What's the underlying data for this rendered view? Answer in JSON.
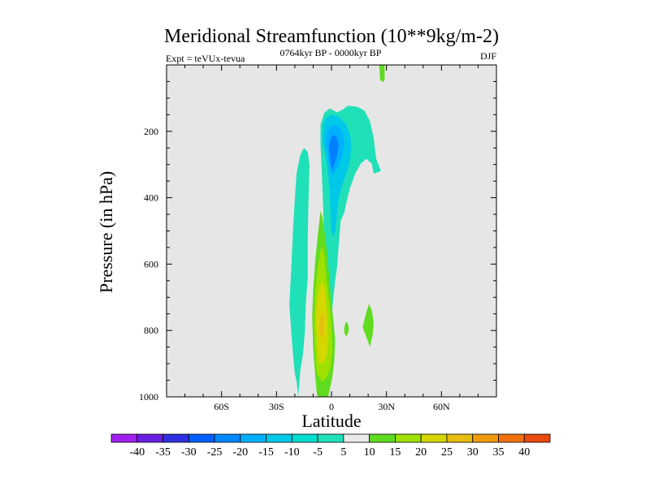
{
  "chart_data": {
    "type": "contour",
    "title": "Meridional Streamfunction (10**9kg/m-2)",
    "subtitle": "0764kyr BP - 0000kyr BP",
    "left_label": "Expt = teVUx-tevua",
    "right_label": "DJF",
    "xlabel": "Latitude",
    "ylabel": "Pressure (in hPa)",
    "xlim": [
      -90,
      90
    ],
    "ylim": [
      0,
      1000
    ],
    "y_inverted": true,
    "x_ticks": [
      {
        "value": -60,
        "label": "60S"
      },
      {
        "value": -30,
        "label": "30S"
      },
      {
        "value": 0,
        "label": "0"
      },
      {
        "value": 30,
        "label": "30N"
      },
      {
        "value": 60,
        "label": "60N"
      }
    ],
    "y_ticks": [
      {
        "value": 200,
        "label": "200"
      },
      {
        "value": 400,
        "label": "400"
      },
      {
        "value": 600,
        "label": "600"
      },
      {
        "value": 800,
        "label": "800"
      },
      {
        "value": 1000,
        "label": "1000"
      }
    ],
    "background_color": "#e6e6e6",
    "regions": [
      {
        "name": "sh-weak-negative-cell",
        "level": -5,
        "color": "#20e0b8",
        "points": [
          [
            -21,
            1045
          ],
          [
            -18,
            1003
          ],
          [
            -19,
            955
          ],
          [
            -20,
            930
          ],
          [
            -21,
            870
          ],
          [
            -22,
            800
          ],
          [
            -23,
            720
          ],
          [
            -22,
            620
          ],
          [
            -21,
            500
          ],
          [
            -20,
            400
          ],
          [
            -19,
            325
          ],
          [
            -17,
            270
          ],
          [
            -15,
            250
          ],
          [
            -13,
            262
          ],
          [
            -12,
            300
          ],
          [
            -12.5,
            400
          ],
          [
            -13,
            520
          ],
          [
            -13,
            640
          ],
          [
            -14,
            720
          ],
          [
            -14.5,
            800
          ],
          [
            -15.5,
            870
          ],
          [
            -17,
            920
          ],
          [
            -18,
            990
          ]
        ]
      },
      {
        "name": "tropical-negative-cell-outer",
        "level": -5,
        "color": "#20e0b8",
        "points": [
          [
            -6,
            180
          ],
          [
            -4,
            145
          ],
          [
            -1,
            131
          ],
          [
            3,
            143
          ],
          [
            6,
            135
          ],
          [
            9,
            123
          ],
          [
            14,
            126
          ],
          [
            18,
            138
          ],
          [
            21,
            170
          ],
          [
            23,
            220
          ],
          [
            24,
            265
          ],
          [
            24.5,
            285
          ],
          [
            26,
            305
          ],
          [
            27,
            320
          ],
          [
            23,
            327
          ],
          [
            22,
            297
          ],
          [
            19,
            283
          ],
          [
            16,
            297
          ],
          [
            13,
            327
          ],
          [
            10,
            372
          ],
          [
            8,
            418
          ],
          [
            7,
            444
          ],
          [
            5,
            470
          ],
          [
            4,
            540
          ],
          [
            3,
            610
          ],
          [
            2,
            650
          ],
          [
            1,
            700
          ],
          [
            0,
            760
          ],
          [
            -1,
            805
          ],
          [
            -2.5,
            840
          ],
          [
            -3,
            820
          ],
          [
            -3,
            760
          ],
          [
            -3,
            700
          ],
          [
            -3.5,
            600
          ],
          [
            -4,
            520
          ],
          [
            -4.5,
            440
          ],
          [
            -5,
            360
          ],
          [
            -5.5,
            300
          ],
          [
            -6,
            240
          ]
        ]
      },
      {
        "name": "tropical-negative-cell-middle",
        "level": -10,
        "color": "#00c8e8",
        "points": [
          [
            -5,
            230
          ],
          [
            -4.5,
            180
          ],
          [
            -3,
            160
          ],
          [
            0,
            150
          ],
          [
            4,
            155
          ],
          [
            8,
            180
          ],
          [
            10,
            210
          ],
          [
            11,
            240
          ],
          [
            10,
            290
          ],
          [
            8,
            330
          ],
          [
            6,
            360
          ],
          [
            4,
            400
          ],
          [
            3,
            450
          ],
          [
            2,
            500
          ],
          [
            1,
            520
          ],
          [
            0,
            500
          ],
          [
            -0.5,
            440
          ],
          [
            -1,
            380
          ],
          [
            -2,
            320
          ],
          [
            -3,
            280
          ],
          [
            -4,
            255
          ]
        ]
      },
      {
        "name": "tropical-negative-cell-inner",
        "level": -15,
        "color": "#00b0ff",
        "points": [
          [
            -3,
            230
          ],
          [
            -2.5,
            200
          ],
          [
            0,
            182
          ],
          [
            4,
            185
          ],
          [
            6,
            205
          ],
          [
            7,
            235
          ],
          [
            6,
            270
          ],
          [
            4,
            300
          ],
          [
            2,
            320
          ],
          [
            0.5,
            335
          ],
          [
            -1,
            310
          ],
          [
            -2,
            280
          ],
          [
            -2.5,
            255
          ]
        ]
      },
      {
        "name": "tropical-negative-cell-core",
        "level": -20,
        "color": "#0080ff",
        "points": [
          [
            -1.5,
            245
          ],
          [
            0,
            215
          ],
          [
            2.5,
            212
          ],
          [
            4,
            240
          ],
          [
            3,
            275
          ],
          [
            1.5,
            300
          ],
          [
            0.5,
            320
          ],
          [
            -0.5,
            300
          ],
          [
            -1,
            270
          ]
        ]
      },
      {
        "name": "positive-cell-outer",
        "level": 5,
        "color": "#60dc20",
        "points": [
          [
            -6,
            1038
          ],
          [
            -8,
            990
          ],
          [
            -9,
            930
          ],
          [
            -10,
            850
          ],
          [
            -10.5,
            760
          ],
          [
            -10,
            680
          ],
          [
            -9,
            600
          ],
          [
            -8,
            540
          ],
          [
            -7,
            490
          ],
          [
            -6,
            440
          ],
          [
            -5,
            455
          ],
          [
            -4,
            495
          ],
          [
            -2.5,
            560
          ],
          [
            -1.5,
            620
          ],
          [
            -0.5,
            690
          ],
          [
            1,
            770
          ],
          [
            2,
            830
          ],
          [
            1.5,
            890
          ],
          [
            0.5,
            940
          ],
          [
            -1,
            980
          ],
          [
            -3,
            1030
          ]
        ]
      },
      {
        "name": "positive-cell-middle",
        "level": 10,
        "color": "#a0e000",
        "points": [
          [
            -8,
            930
          ],
          [
            -9,
            860
          ],
          [
            -9.5,
            780
          ],
          [
            -9,
            690
          ],
          [
            -7.5,
            610
          ],
          [
            -6,
            560
          ],
          [
            -5,
            545
          ],
          [
            -4,
            570
          ],
          [
            -3,
            630
          ],
          [
            -1.5,
            700
          ],
          [
            0,
            780
          ],
          [
            0.5,
            860
          ],
          [
            -0.5,
            910
          ],
          [
            -2.5,
            940
          ],
          [
            -5,
            955
          ]
        ]
      },
      {
        "name": "positive-cell-inner",
        "level": 15,
        "color": "#d6d600",
        "points": [
          [
            -7,
            895
          ],
          [
            -8,
            830
          ],
          [
            -8.5,
            770
          ],
          [
            -8,
            710
          ],
          [
            -6.5,
            670
          ],
          [
            -5,
            650
          ],
          [
            -3.5,
            680
          ],
          [
            -2.5,
            750
          ],
          [
            -2,
            820
          ],
          [
            -2.5,
            870
          ],
          [
            -4.5,
            900
          ]
        ]
      },
      {
        "name": "positive-cell-core",
        "level": 20,
        "color": "#e8bc10",
        "points": [
          [
            -6,
            815
          ],
          [
            -6.5,
            790
          ],
          [
            -6,
            760
          ],
          [
            -4.5,
            745
          ],
          [
            -4,
            775
          ],
          [
            -4.5,
            810
          ],
          [
            -5.2,
            825
          ]
        ]
      },
      {
        "name": "nh-small-positive-blob-a",
        "level": 5,
        "color": "#60dc20",
        "points": [
          [
            7,
            808
          ],
          [
            7,
            790
          ],
          [
            8,
            772
          ],
          [
            9,
            782
          ],
          [
            9.5,
            795
          ],
          [
            9,
            808
          ],
          [
            8,
            818
          ]
        ]
      },
      {
        "name": "nh-small-positive-blob-b",
        "level": 5,
        "color": "#60dc20",
        "points": [
          [
            17,
            790
          ],
          [
            19,
            745
          ],
          [
            20.5,
            720
          ],
          [
            22,
            740
          ],
          [
            23,
            775
          ],
          [
            22.5,
            810
          ],
          [
            21,
            850
          ],
          [
            19,
            820
          ]
        ]
      },
      {
        "name": "upper-positive-sliver",
        "level": 5,
        "color": "#60dc20",
        "points": [
          [
            26,
            -10
          ],
          [
            29,
            -10
          ],
          [
            29,
            45
          ],
          [
            28,
            52
          ],
          [
            26.5,
            45
          ]
        ]
      }
    ],
    "colorbar": {
      "labels": [
        "-40",
        "-35",
        "-30",
        "-25",
        "-20",
        "-15",
        "-10",
        "-5",
        "5",
        "10",
        "15",
        "20",
        "25",
        "30",
        "35",
        "40"
      ],
      "colors": [
        "#a020f0",
        "#6a1ee0",
        "#3030e0",
        "#0060ff",
        "#0088ff",
        "#00b0ff",
        "#00c8e8",
        "#00dcd0",
        "#20e0b8",
        "#eaeaea",
        "#60dc20",
        "#a0e000",
        "#d6d600",
        "#e8bc10",
        "#f09a10",
        "#f07010",
        "#e84a10"
      ]
    }
  }
}
